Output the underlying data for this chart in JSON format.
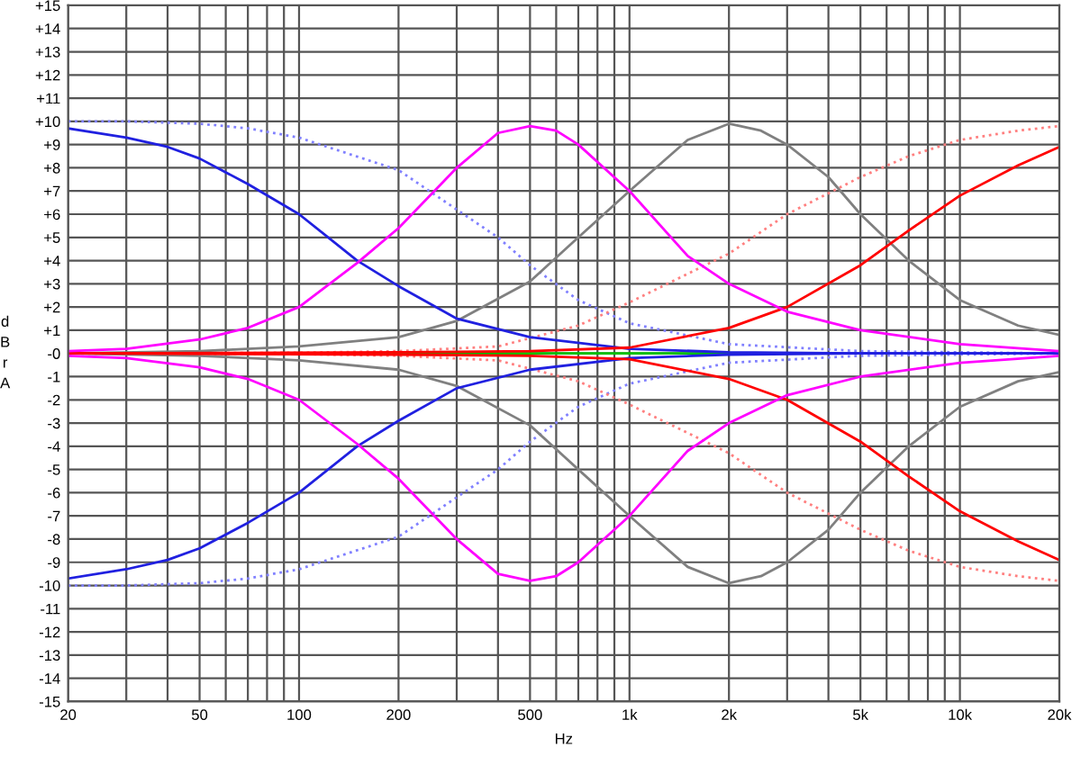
{
  "chart_data": {
    "type": "line",
    "xlabel": "Hz",
    "ylabel": "dBr A",
    "log": "x",
    "grid": true,
    "legend": false,
    "marker": "none",
    "xlim": [
      20,
      20000
    ],
    "ylim": [
      -15,
      15
    ],
    "xticks": [
      {
        "value": 20,
        "label": "20"
      },
      {
        "value": 30,
        "label": null
      },
      {
        "value": 40,
        "label": null
      },
      {
        "value": 50,
        "label": "50"
      },
      {
        "value": 60,
        "label": null
      },
      {
        "value": 70,
        "label": null
      },
      {
        "value": 80,
        "label": null
      },
      {
        "value": 90,
        "label": null
      },
      {
        "value": 100,
        "label": "100"
      },
      {
        "value": 200,
        "label": "200"
      },
      {
        "value": 300,
        "label": null
      },
      {
        "value": 400,
        "label": null
      },
      {
        "value": 500,
        "label": "500"
      },
      {
        "value": 600,
        "label": null
      },
      {
        "value": 700,
        "label": null
      },
      {
        "value": 800,
        "label": null
      },
      {
        "value": 900,
        "label": null
      },
      {
        "value": 1000,
        "label": "1k"
      },
      {
        "value": 2000,
        "label": "2k"
      },
      {
        "value": 3000,
        "label": null
      },
      {
        "value": 4000,
        "label": null
      },
      {
        "value": 5000,
        "label": "5k"
      },
      {
        "value": 6000,
        "label": null
      },
      {
        "value": 7000,
        "label": null
      },
      {
        "value": 8000,
        "label": null
      },
      {
        "value": 9000,
        "label": null
      },
      {
        "value": 10000,
        "label": "10k"
      },
      {
        "value": 20000,
        "label": "20k"
      }
    ],
    "yticks": [
      {
        "value": 15,
        "label": "+15"
      },
      {
        "value": 14,
        "label": "+14"
      },
      {
        "value": 13,
        "label": "+13"
      },
      {
        "value": 12,
        "label": "+12"
      },
      {
        "value": 11,
        "label": "+11"
      },
      {
        "value": 10,
        "label": "+10"
      },
      {
        "value": 9,
        "label": "+9"
      },
      {
        "value": 8,
        "label": "+8"
      },
      {
        "value": 7,
        "label": "+7"
      },
      {
        "value": 6,
        "label": "+6"
      },
      {
        "value": 5,
        "label": "+5"
      },
      {
        "value": 4,
        "label": "+4"
      },
      {
        "value": 3,
        "label": "+3"
      },
      {
        "value": 2,
        "label": "+2"
      },
      {
        "value": 1,
        "label": "+1"
      },
      {
        "value": 0,
        "label": "-0"
      },
      {
        "value": -1,
        "label": "-1"
      },
      {
        "value": -2,
        "label": "-2"
      },
      {
        "value": -3,
        "label": "-3"
      },
      {
        "value": -4,
        "label": "-4"
      },
      {
        "value": -5,
        "label": "-5"
      },
      {
        "value": -6,
        "label": "-6"
      },
      {
        "value": -7,
        "label": "-7"
      },
      {
        "value": -8,
        "label": "-8"
      },
      {
        "value": -9,
        "label": "-9"
      },
      {
        "value": -10,
        "label": "-10"
      },
      {
        "value": -11,
        "label": "-11"
      },
      {
        "value": -12,
        "label": "-12"
      },
      {
        "value": -13,
        "label": "-13"
      },
      {
        "value": -14,
        "label": "-14"
      },
      {
        "value": -15,
        "label": "-15"
      }
    ],
    "series": [
      {
        "color": "#00c000",
        "line_style": "solid",
        "x": [
          50,
          2000
        ],
        "values": [
          0,
          0
        ]
      },
      {
        "color": "#8080ff",
        "line_style": "dotted",
        "x": [
          20,
          30,
          50,
          70,
          100,
          200,
          300,
          400,
          500,
          700,
          1000,
          2000,
          5000,
          20000
        ],
        "values": [
          10,
          10,
          9.9,
          9.7,
          9.3,
          7.9,
          6.2,
          5.0,
          3.8,
          2.3,
          1.3,
          0.4,
          0.1,
          0
        ]
      },
      {
        "color": "#8080ff",
        "line_style": "dotted",
        "x": [
          20,
          30,
          50,
          70,
          100,
          200,
          300,
          400,
          500,
          700,
          1000,
          2000,
          5000,
          20000
        ],
        "values": [
          -10,
          -10,
          -9.9,
          -9.7,
          -9.3,
          -7.9,
          -6.2,
          -5.0,
          -3.8,
          -2.3,
          -1.3,
          -0.4,
          -0.1,
          0
        ]
      },
      {
        "color": "#ff8080",
        "line_style": "dotted",
        "x": [
          20,
          100,
          200,
          400,
          700,
          1000,
          2000,
          3000,
          5000,
          7000,
          10000,
          15000,
          20000
        ],
        "values": [
          0,
          0.03,
          0.1,
          0.3,
          1.2,
          2.2,
          4.3,
          6.0,
          7.6,
          8.5,
          9.2,
          9.6,
          9.8
        ]
      },
      {
        "color": "#ff8080",
        "line_style": "dotted",
        "x": [
          20,
          100,
          200,
          400,
          700,
          1000,
          2000,
          3000,
          5000,
          7000,
          10000,
          15000,
          20000
        ],
        "values": [
          0,
          -0.03,
          -0.1,
          -0.3,
          -1.2,
          -2.2,
          -4.3,
          -6.0,
          -7.6,
          -8.5,
          -9.2,
          -9.6,
          -9.8
        ]
      },
      {
        "color": "#808080",
        "line_style": "solid",
        "x": [
          20,
          50,
          100,
          200,
          300,
          500,
          700,
          1000,
          1500,
          2000,
          2500,
          3000,
          4000,
          5000,
          7000,
          10000,
          15000,
          20000
        ],
        "values": [
          0,
          0.1,
          0.3,
          0.7,
          1.4,
          3.1,
          5.0,
          7.0,
          9.2,
          9.9,
          9.6,
          9.0,
          7.6,
          6.0,
          4.0,
          2.3,
          1.2,
          0.8
        ]
      },
      {
        "color": "#808080",
        "line_style": "solid",
        "x": [
          20,
          50,
          100,
          200,
          300,
          500,
          700,
          1000,
          1500,
          2000,
          2500,
          3000,
          4000,
          5000,
          7000,
          10000,
          15000,
          20000
        ],
        "values": [
          0,
          -0.1,
          -0.3,
          -0.7,
          -1.4,
          -3.1,
          -5.0,
          -7.0,
          -9.2,
          -9.9,
          -9.6,
          -9.0,
          -7.6,
          -6.0,
          -4.0,
          -2.3,
          -1.2,
          -0.8
        ]
      },
      {
        "color": "#2020e0",
        "line_style": "solid",
        "x": [
          20,
          30,
          40,
          50,
          70,
          100,
          150,
          200,
          300,
          500,
          1000,
          2000,
          5000,
          20000
        ],
        "values": [
          9.7,
          9.3,
          8.9,
          8.4,
          7.3,
          6.0,
          4.0,
          2.9,
          1.5,
          0.7,
          0.2,
          0.05,
          0,
          0
        ]
      },
      {
        "color": "#2020e0",
        "line_style": "solid",
        "x": [
          20,
          30,
          40,
          50,
          70,
          100,
          150,
          200,
          300,
          500,
          1000,
          2000,
          5000,
          20000
        ],
        "values": [
          -9.7,
          -9.3,
          -8.9,
          -8.4,
          -7.3,
          -6.0,
          -4.0,
          -2.9,
          -1.5,
          -0.7,
          -0.2,
          -0.05,
          0,
          0
        ]
      },
      {
        "color": "#ff0000",
        "line_style": "solid",
        "x": [
          20,
          200,
          500,
          1000,
          2000,
          3000,
          5000,
          7000,
          10000,
          15000,
          20000
        ],
        "values": [
          0,
          0.05,
          0.1,
          0.25,
          1.1,
          2.0,
          3.8,
          5.3,
          6.8,
          8.1,
          8.9
        ]
      },
      {
        "color": "#ff0000",
        "line_style": "solid",
        "x": [
          20,
          200,
          500,
          1000,
          2000,
          3000,
          5000,
          7000,
          10000,
          15000,
          20000
        ],
        "values": [
          0,
          -0.05,
          -0.1,
          -0.25,
          -1.1,
          -2.0,
          -3.8,
          -5.3,
          -6.8,
          -8.1,
          -8.9
        ]
      },
      {
        "color": "#ff00ff",
        "line_style": "solid",
        "x": [
          20,
          30,
          50,
          70,
          100,
          150,
          200,
          300,
          400,
          500,
          600,
          700,
          1000,
          1500,
          2000,
          3000,
          5000,
          10000,
          20000
        ],
        "values": [
          0.1,
          0.2,
          0.6,
          1.1,
          2.0,
          3.9,
          5.4,
          8.0,
          9.5,
          9.8,
          9.6,
          9.0,
          7.0,
          4.2,
          3.0,
          1.8,
          1.0,
          0.4,
          0.1
        ]
      },
      {
        "color": "#ff00ff",
        "line_style": "solid",
        "x": [
          20,
          30,
          50,
          70,
          100,
          150,
          200,
          300,
          400,
          500,
          600,
          700,
          1000,
          1500,
          2000,
          3000,
          5000,
          10000,
          20000
        ],
        "values": [
          -0.1,
          -0.2,
          -0.6,
          -1.1,
          -2.0,
          -3.9,
          -5.4,
          -8.0,
          -9.5,
          -9.8,
          -9.6,
          -9.0,
          -7.0,
          -4.2,
          -3.0,
          -1.8,
          -1.0,
          -0.4,
          -0.1
        ]
      }
    ]
  }
}
